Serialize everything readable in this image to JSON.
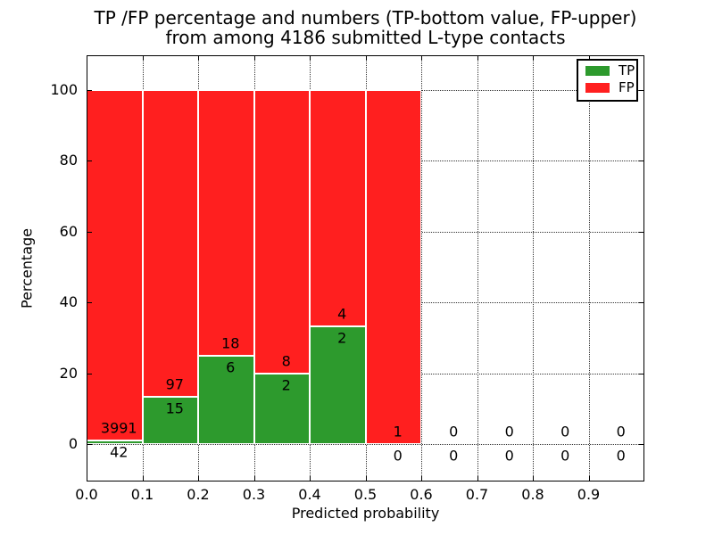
{
  "chart_data": {
    "type": "bar",
    "stacked": true,
    "title_line1": "TP /FP percentage and numbers (TP-bottom value, FP-upper)",
    "title_line2": "from among 4186 submitted L-type contacts",
    "xlabel": "Predicted probability",
    "ylabel": "Percentage",
    "total_contacts": 4186,
    "xlim": [
      0.0,
      1.0
    ],
    "ylim": [
      -10.6,
      109.8
    ],
    "x_ticks": [
      0.0,
      0.1,
      0.2,
      0.3,
      0.4,
      0.5,
      0.6,
      0.7,
      0.8,
      0.9
    ],
    "x_tick_labels": [
      "0.0",
      "0.1",
      "0.2",
      "0.3",
      "0.4",
      "0.5",
      "0.6",
      "0.7",
      "0.8",
      "0.9"
    ],
    "y_ticks": [
      0,
      20,
      40,
      60,
      80,
      100
    ],
    "y_tick_labels": [
      "0",
      "20",
      "40",
      "60",
      "80",
      "100"
    ],
    "grid": true,
    "legend_position": "upper right",
    "series": [
      {
        "name": "TP",
        "color": "#2d9a2d"
      },
      {
        "name": "FP",
        "color": "#ff1f1f"
      }
    ],
    "bins": [
      {
        "x0": 0.0,
        "x1": 0.1,
        "tp": 42,
        "fp": 3991,
        "tp_pct": 1.04,
        "bar": true
      },
      {
        "x0": 0.1,
        "x1": 0.2,
        "tp": 15,
        "fp": 97,
        "tp_pct": 13.39,
        "bar": true
      },
      {
        "x0": 0.2,
        "x1": 0.3,
        "tp": 6,
        "fp": 18,
        "tp_pct": 25.0,
        "bar": true
      },
      {
        "x0": 0.3,
        "x1": 0.4,
        "tp": 2,
        "fp": 8,
        "tp_pct": 20.0,
        "bar": true
      },
      {
        "x0": 0.4,
        "x1": 0.5,
        "tp": 2,
        "fp": 4,
        "tp_pct": 33.33,
        "bar": true
      },
      {
        "x0": 0.5,
        "x1": 0.6,
        "tp": 0,
        "fp": 1,
        "tp_pct": 0.0,
        "bar": true
      },
      {
        "x0": 0.6,
        "x1": 0.7,
        "tp": 0,
        "fp": 0,
        "tp_pct": null,
        "bar": false
      },
      {
        "x0": 0.7,
        "x1": 0.8,
        "tp": 0,
        "fp": 0,
        "tp_pct": null,
        "bar": false
      },
      {
        "x0": 0.8,
        "x1": 0.9,
        "tp": 0,
        "fp": 0,
        "tp_pct": null,
        "bar": false
      },
      {
        "x0": 0.9,
        "x1": 1.0,
        "tp": 0,
        "fp": 0,
        "tp_pct": null,
        "bar": false
      }
    ]
  }
}
